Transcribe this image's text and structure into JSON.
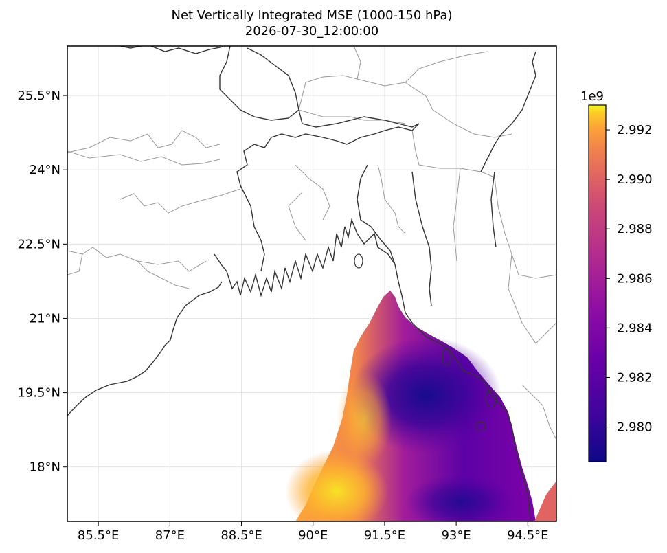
{
  "title": "Net Vertically Integrated MSE (1000-150 hPa)",
  "subtitle": "2026-07-30_12:00:00",
  "map": {
    "lon_range": [
      84.85,
      95.1
    ],
    "lat_range": [
      16.9,
      26.5
    ],
    "lon_ticks": [
      "85.5°E",
      "87°E",
      "88.5°E",
      "90°E",
      "91.5°E",
      "93°E",
      "94.5°E"
    ],
    "lat_ticks": [
      "25.5°N",
      "24°N",
      "22.5°N",
      "21°N",
      "19.5°N",
      "18°N"
    ],
    "gridlines": true,
    "field_extent": "sea area south of 21.5°N, east of 89.7°E",
    "field_min_region": "around 92.5°E, 19.8°N",
    "field_max_region": "around 90.5°E, 17.5°N"
  },
  "colorbar": {
    "cmap": "plasma",
    "exponent_label": "1e9",
    "range": [
      2.9786,
      2.993
    ],
    "ticks": [
      "2.992",
      "2.990",
      "2.988",
      "2.986",
      "2.984",
      "2.982",
      "2.980"
    ]
  },
  "colors": {
    "coastline": "#333333",
    "borders": "#999999",
    "gridline": "#e0e0e0"
  }
}
